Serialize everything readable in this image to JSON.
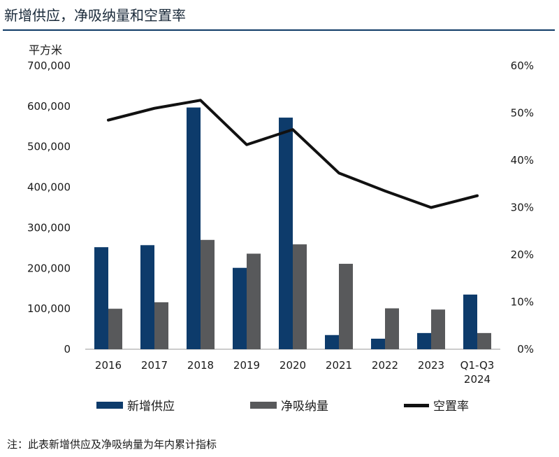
{
  "title": "新增供应，净吸纳量和空置率",
  "footnote": "注：此表新增供应及净吸纳量为年内累计指标",
  "colors": {
    "supply": "#0d3b6b",
    "absorption": "#58595b",
    "vacancy": "#111111",
    "rule": "#0f3a66"
  },
  "chart_data": {
    "type": "bar",
    "title": "新增供应，净吸纳量和空置率",
    "ylabel": "平方米",
    "xlabel": "",
    "categories": [
      [
        "2016"
      ],
      [
        "2017"
      ],
      [
        "2018"
      ],
      [
        "2019"
      ],
      [
        "2020"
      ],
      [
        "2021"
      ],
      [
        "2022"
      ],
      [
        "2023"
      ],
      [
        "Q1-Q3",
        "2024"
      ]
    ],
    "y_left": {
      "min": 0,
      "max": 700000,
      "ticks": [
        0,
        100000,
        200000,
        300000,
        400000,
        500000,
        600000,
        700000
      ],
      "tick_labels": [
        "0",
        "100,000",
        "200,000",
        "300,000",
        "400,000",
        "500,000",
        "600,000",
        "700,000"
      ]
    },
    "y_right": {
      "min": 0,
      "max": 0.6,
      "ticks": [
        0,
        0.1,
        0.2,
        0.3,
        0.4,
        0.5,
        0.6
      ],
      "tick_labels": [
        "0%",
        "10%",
        "20%",
        "30%",
        "40%",
        "50%",
        "60%"
      ]
    },
    "series": [
      {
        "name": "新增供应",
        "type": "bar",
        "axis": "left",
        "color": "#0d3b6b",
        "values": [
          252000,
          257000,
          597000,
          201000,
          572000,
          35000,
          26000,
          40000,
          135000
        ]
      },
      {
        "name": "净吸纳量",
        "type": "bar",
        "axis": "left",
        "color": "#58595b",
        "values": [
          100000,
          116000,
          270000,
          236000,
          259000,
          211000,
          101000,
          98000,
          40000
        ]
      },
      {
        "name": "空置率",
        "type": "line",
        "axis": "right",
        "color": "#111111",
        "values": [
          0.485,
          0.51,
          0.527,
          0.433,
          0.465,
          0.373,
          0.335,
          0.3,
          0.325
        ]
      }
    ],
    "legend_position": "bottom",
    "grid": false
  }
}
